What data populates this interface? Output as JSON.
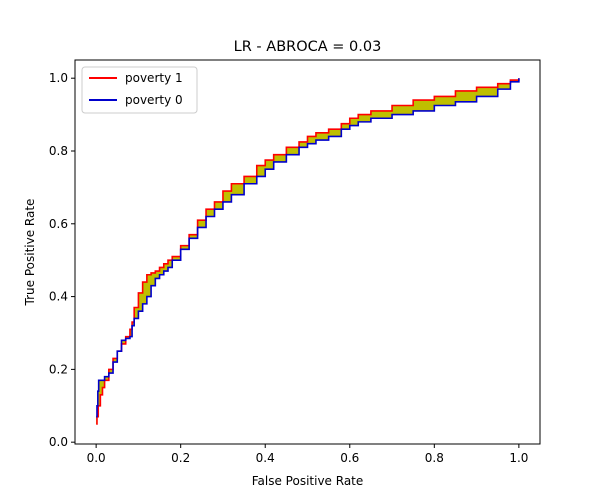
{
  "chart_data": {
    "type": "line",
    "title": "LR - ABROCA = 0.03",
    "xlabel": "False Positive Rate",
    "ylabel": "True Positive Rate",
    "xlim": [
      -0.05,
      1.05
    ],
    "ylim": [
      -0.005,
      1.05
    ],
    "xticks": [
      0.0,
      0.2,
      0.4,
      0.6,
      0.8,
      1.0
    ],
    "xtick_labels": [
      "0.0",
      "0.2",
      "0.4",
      "0.6",
      "0.8",
      "1.0"
    ],
    "yticks": [
      0.0,
      0.2,
      0.4,
      0.6,
      0.8,
      1.0
    ],
    "ytick_labels": [
      "0.0",
      "0.2",
      "0.4",
      "0.6",
      "0.8",
      "1.0"
    ],
    "grid": false,
    "legend_position": "top-left",
    "fill_color": "#bfbf00",
    "series": [
      {
        "name": "poverty 1",
        "color": "#ff0000",
        "x": [
          0.0,
          0.002,
          0.005,
          0.01,
          0.015,
          0.02,
          0.03,
          0.04,
          0.05,
          0.06,
          0.07,
          0.08,
          0.085,
          0.09,
          0.1,
          0.11,
          0.12,
          0.13,
          0.14,
          0.15,
          0.16,
          0.17,
          0.18,
          0.2,
          0.22,
          0.24,
          0.26,
          0.28,
          0.3,
          0.32,
          0.35,
          0.38,
          0.4,
          0.42,
          0.45,
          0.48,
          0.5,
          0.52,
          0.55,
          0.58,
          0.6,
          0.62,
          0.65,
          0.7,
          0.75,
          0.8,
          0.85,
          0.9,
          0.95,
          0.98,
          1.0
        ],
        "y": [
          0.05,
          0.07,
          0.1,
          0.13,
          0.15,
          0.17,
          0.2,
          0.23,
          0.25,
          0.27,
          0.29,
          0.31,
          0.33,
          0.37,
          0.41,
          0.44,
          0.46,
          0.465,
          0.47,
          0.48,
          0.49,
          0.5,
          0.51,
          0.54,
          0.57,
          0.61,
          0.64,
          0.66,
          0.69,
          0.71,
          0.73,
          0.76,
          0.775,
          0.79,
          0.81,
          0.825,
          0.84,
          0.85,
          0.86,
          0.875,
          0.89,
          0.9,
          0.91,
          0.925,
          0.94,
          0.95,
          0.965,
          0.975,
          0.985,
          0.995,
          1.0
        ]
      },
      {
        "name": "poverty 0",
        "color": "#0000cc",
        "x": [
          0.0,
          0.002,
          0.004,
          0.006,
          0.02,
          0.03,
          0.04,
          0.05,
          0.06,
          0.07,
          0.08,
          0.085,
          0.09,
          0.1,
          0.11,
          0.12,
          0.13,
          0.14,
          0.15,
          0.16,
          0.17,
          0.18,
          0.2,
          0.22,
          0.24,
          0.26,
          0.28,
          0.3,
          0.32,
          0.35,
          0.38,
          0.4,
          0.42,
          0.45,
          0.48,
          0.5,
          0.52,
          0.55,
          0.58,
          0.6,
          0.62,
          0.65,
          0.7,
          0.75,
          0.8,
          0.85,
          0.9,
          0.95,
          0.98,
          1.0
        ],
        "y": [
          0.07,
          0.1,
          0.14,
          0.17,
          0.18,
          0.19,
          0.22,
          0.25,
          0.28,
          0.285,
          0.29,
          0.32,
          0.34,
          0.36,
          0.38,
          0.4,
          0.43,
          0.45,
          0.46,
          0.47,
          0.48,
          0.5,
          0.53,
          0.56,
          0.59,
          0.62,
          0.64,
          0.66,
          0.68,
          0.71,
          0.73,
          0.75,
          0.77,
          0.79,
          0.81,
          0.82,
          0.83,
          0.84,
          0.86,
          0.87,
          0.88,
          0.89,
          0.9,
          0.91,
          0.925,
          0.935,
          0.95,
          0.97,
          0.99,
          1.0
        ]
      }
    ]
  }
}
